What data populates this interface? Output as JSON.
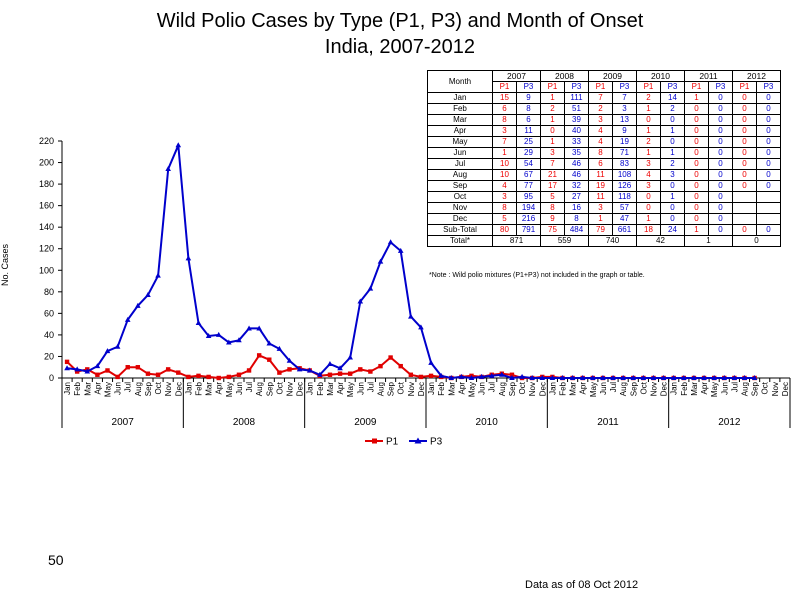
{
  "title_line1": "Wild Polio Cases by Type (P1, P3) and Month of Onset",
  "title_line2": "India, 2007-2012",
  "slide_number": "50",
  "footer": "Data as of 08 Oct 2012",
  "table": {
    "month_header": "Month",
    "years": [
      "2007",
      "2008",
      "2009",
      "2010",
      "2011",
      "2012"
    ],
    "p1_label": "P1",
    "p3_label": "P3",
    "rows": [
      {
        "month": "Jan",
        "v": [
          "15",
          "9",
          "1",
          "111",
          "7",
          "7",
          "2",
          "14",
          "1",
          "0",
          "0",
          "0"
        ]
      },
      {
        "month": "Feb",
        "v": [
          "6",
          "8",
          "2",
          "51",
          "2",
          "3",
          "1",
          "2",
          "0",
          "0",
          "0",
          "0"
        ]
      },
      {
        "month": "Mar",
        "v": [
          "8",
          "6",
          "1",
          "39",
          "3",
          "13",
          "0",
          "0",
          "0",
          "0",
          "0",
          "0"
        ]
      },
      {
        "month": "Apr",
        "v": [
          "3",
          "11",
          "0",
          "40",
          "4",
          "9",
          "1",
          "1",
          "0",
          "0",
          "0",
          "0"
        ]
      },
      {
        "month": "May",
        "v": [
          "7",
          "25",
          "1",
          "33",
          "4",
          "19",
          "2",
          "0",
          "0",
          "0",
          "0",
          "0"
        ]
      },
      {
        "month": "Jun",
        "v": [
          "1",
          "29",
          "3",
          "35",
          "8",
          "71",
          "1",
          "1",
          "0",
          "0",
          "0",
          "0"
        ]
      },
      {
        "month": "Jul",
        "v": [
          "10",
          "54",
          "7",
          "46",
          "6",
          "83",
          "3",
          "2",
          "0",
          "0",
          "0",
          "0"
        ]
      },
      {
        "month": "Aug",
        "v": [
          "10",
          "67",
          "21",
          "46",
          "11",
          "108",
          "4",
          "3",
          "0",
          "0",
          "0",
          "0"
        ]
      },
      {
        "month": "Sep",
        "v": [
          "4",
          "77",
          "17",
          "32",
          "19",
          "126",
          "3",
          "0",
          "0",
          "0",
          "0",
          "0"
        ]
      },
      {
        "month": "Oct",
        "v": [
          "3",
          "95",
          "5",
          "27",
          "11",
          "118",
          "0",
          "1",
          "0",
          "0",
          "",
          ""
        ]
      },
      {
        "month": "Nov",
        "v": [
          "8",
          "194",
          "8",
          "16",
          "3",
          "57",
          "0",
          "0",
          "0",
          "0",
          "",
          ""
        ]
      },
      {
        "month": "Dec",
        "v": [
          "5",
          "216",
          "9",
          "8",
          "1",
          "47",
          "1",
          "0",
          "0",
          "0",
          "",
          ""
        ]
      }
    ],
    "subtotal_label": "Sub-Total",
    "subtotal": [
      "80",
      "791",
      "75",
      "484",
      "79",
      "661",
      "18",
      "24",
      "1",
      "0",
      "0",
      "0"
    ],
    "total_label": "Total*",
    "total": [
      "871",
      "559",
      "740",
      "42",
      "1",
      "0"
    ],
    "note": "*Note : Wild polio mixtures (P1+P3) not included in the graph or table."
  },
  "chart_data": {
    "type": "line",
    "y_axis_label": "No. Cases",
    "ylim": [
      0,
      220
    ],
    "y_ticks": [
      0,
      20,
      40,
      60,
      80,
      100,
      120,
      140,
      160,
      180,
      200,
      220
    ],
    "x_tick_labels": [
      "Jan",
      "Feb",
      "Mar",
      "Apr",
      "May",
      "Jun",
      "Jul",
      "Aug",
      "Sep",
      "Oct",
      "Nov",
      "Dec"
    ],
    "years": [
      "2007",
      "2008",
      "2009",
      "2010",
      "2011",
      "2012"
    ],
    "series": [
      {
        "name": "P1",
        "color": "#e00000",
        "marker": "square",
        "values": [
          15,
          6,
          8,
          3,
          7,
          1,
          10,
          10,
          4,
          3,
          8,
          5,
          1,
          2,
          1,
          0,
          1,
          3,
          7,
          21,
          17,
          5,
          8,
          9,
          7,
          2,
          3,
          4,
          4,
          8,
          6,
          11,
          19,
          11,
          3,
          1,
          2,
          1,
          0,
          1,
          2,
          1,
          3,
          4,
          3,
          0,
          0,
          1,
          1,
          0,
          0,
          0,
          0,
          0,
          0,
          0,
          0,
          0,
          0,
          0,
          0,
          0,
          0,
          0,
          0,
          0,
          0,
          0,
          0
        ]
      },
      {
        "name": "P3",
        "color": "#0000cc",
        "marker": "triangle",
        "values": [
          9,
          8,
          6,
          11,
          25,
          29,
          54,
          67,
          77,
          95,
          194,
          216,
          111,
          51,
          39,
          40,
          33,
          35,
          46,
          46,
          32,
          27,
          16,
          8,
          7,
          3,
          13,
          9,
          19,
          71,
          83,
          108,
          126,
          118,
          57,
          47,
          14,
          2,
          0,
          1,
          0,
          1,
          2,
          3,
          0,
          1,
          0,
          0,
          0,
          0,
          0,
          0,
          0,
          0,
          0,
          0,
          0,
          0,
          0,
          0,
          0,
          0,
          0,
          0,
          0,
          0,
          0,
          0,
          0
        ]
      }
    ],
    "legend_position": "bottom-center"
  }
}
